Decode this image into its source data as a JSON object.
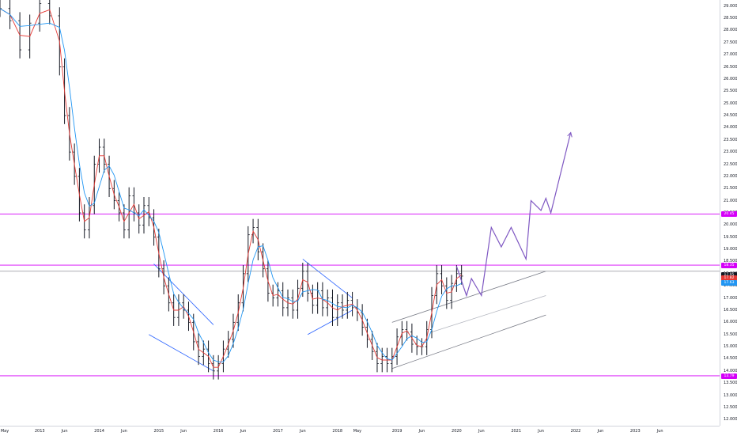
{
  "chart_data": {
    "type": "candlestick",
    "title": "",
    "ylim": [
      11.75,
      29.25
    ],
    "x_range": [
      "2012-05",
      "2024-06"
    ],
    "y_ticks": [
      "29.000",
      "28.500",
      "28.000",
      "27.500",
      "27.000",
      "26.500",
      "26.000",
      "25.500",
      "25.000",
      "24.500",
      "24.000",
      "23.500",
      "23.000",
      "22.500",
      "22.000",
      "21.500",
      "21.000",
      "20.500",
      "20.000",
      "19.500",
      "19.000",
      "18.500",
      "18.000",
      "17.500",
      "17.000",
      "16.500",
      "16.000",
      "15.500",
      "15.000",
      "14.500",
      "14.000",
      "13.500",
      "13.000",
      "12.500",
      "12.000"
    ],
    "x_ticks": [
      {
        "label": "May",
        "x": "2012-05"
      },
      {
        "label": "2013",
        "x": "2013-01"
      },
      {
        "label": "Jun",
        "x": "2013-06"
      },
      {
        "label": "2014",
        "x": "2014-01"
      },
      {
        "label": "Jun",
        "x": "2014-06"
      },
      {
        "label": "2015",
        "x": "2015-01"
      },
      {
        "label": "Jun",
        "x": "2015-06"
      },
      {
        "label": "2016",
        "x": "2016-01"
      },
      {
        "label": "Jun",
        "x": "2016-06"
      },
      {
        "label": "2017",
        "x": "2017-01"
      },
      {
        "label": "Jun",
        "x": "2017-06"
      },
      {
        "label": "2018",
        "x": "2018-01"
      },
      {
        "label": "May",
        "x": "2018-05"
      },
      {
        "label": "2019",
        "x": "2019-01"
      },
      {
        "label": "Jun",
        "x": "2019-06"
      },
      {
        "label": "2020",
        "x": "2020-01"
      },
      {
        "label": "Jun",
        "x": "2020-06"
      },
      {
        "label": "2021",
        "x": "2021-01"
      },
      {
        "label": "Jun",
        "x": "2021-06"
      },
      {
        "label": "2022",
        "x": "2022-01"
      },
      {
        "label": "Jun",
        "x": "2022-06"
      },
      {
        "label": "2023",
        "x": "2023-01"
      },
      {
        "label": "Jun",
        "x": "2023-06"
      }
    ],
    "price_series_close": [
      [
        "2012-05",
        28.9
      ],
      [
        "2012-07",
        28.4
      ],
      [
        "2012-09",
        27.2
      ],
      [
        "2012-11",
        28.3
      ],
      [
        "2013-01",
        29.1
      ],
      [
        "2013-03",
        28.6
      ],
      [
        "2013-05",
        26.5
      ],
      [
        "2013-06",
        24.5
      ],
      [
        "2013-07",
        23.0
      ],
      [
        "2013-08",
        22.0
      ],
      [
        "2013-09",
        20.5
      ],
      [
        "2013-10",
        19.8
      ],
      [
        "2013-11",
        20.8
      ],
      [
        "2013-12",
        22.5
      ],
      [
        "2014-01",
        23.2
      ],
      [
        "2014-02",
        22.5
      ],
      [
        "2014-03",
        21.5
      ],
      [
        "2014-04",
        21.0
      ],
      [
        "2014-05",
        20.5
      ],
      [
        "2014-06",
        19.8
      ],
      [
        "2014-07",
        21.2
      ],
      [
        "2014-08",
        20.5
      ],
      [
        "2014-09",
        20.0
      ],
      [
        "2014-10",
        20.8
      ],
      [
        "2014-11",
        20.3
      ],
      [
        "2014-12",
        19.5
      ],
      [
        "2015-01",
        18.2
      ],
      [
        "2015-02",
        17.5
      ],
      [
        "2015-03",
        16.8
      ],
      [
        "2015-04",
        16.2
      ],
      [
        "2015-05",
        16.8
      ],
      [
        "2015-06",
        16.5
      ],
      [
        "2015-07",
        16.0
      ],
      [
        "2015-08",
        15.2
      ],
      [
        "2015-09",
        14.6
      ],
      [
        "2015-10",
        14.9
      ],
      [
        "2015-11",
        14.3
      ],
      [
        "2015-12",
        14.0
      ],
      [
        "2016-01",
        14.3
      ],
      [
        "2016-02",
        14.9
      ],
      [
        "2016-03",
        15.3
      ],
      [
        "2016-04",
        16.0
      ],
      [
        "2016-05",
        16.8
      ],
      [
        "2016-06",
        18.0
      ],
      [
        "2016-07",
        19.6
      ],
      [
        "2016-08",
        19.9
      ],
      [
        "2016-09",
        18.9
      ],
      [
        "2016-10",
        18.2
      ],
      [
        "2016-11",
        17.2
      ],
      [
        "2016-12",
        17.0
      ],
      [
        "2017-01",
        17.3
      ],
      [
        "2017-02",
        16.6
      ],
      [
        "2017-03",
        17.0
      ],
      [
        "2017-04",
        16.5
      ],
      [
        "2017-05",
        17.4
      ],
      [
        "2017-06",
        18.1
      ],
      [
        "2017-07",
        17.2
      ],
      [
        "2017-08",
        16.7
      ],
      [
        "2017-09",
        17.3
      ],
      [
        "2017-10",
        16.6
      ],
      [
        "2017-11",
        17.0
      ],
      [
        "2017-12",
        16.2
      ],
      [
        "2018-01",
        16.8
      ],
      [
        "2018-02",
        16.5
      ],
      [
        "2018-03",
        16.9
      ],
      [
        "2018-04",
        16.6
      ],
      [
        "2018-05",
        16.4
      ],
      [
        "2018-06",
        15.8
      ],
      [
        "2018-07",
        15.3
      ],
      [
        "2018-08",
        14.8
      ],
      [
        "2018-09",
        14.3
      ],
      [
        "2018-10",
        14.6
      ],
      [
        "2018-11",
        14.3
      ],
      [
        "2018-12",
        14.6
      ],
      [
        "2019-01",
        15.4
      ],
      [
        "2019-02",
        15.7
      ],
      [
        "2019-03",
        15.6
      ],
      [
        "2019-04",
        15.1
      ],
      [
        "2019-05",
        15.0
      ],
      [
        "2019-06",
        15.0
      ],
      [
        "2019-07",
        15.7
      ],
      [
        "2019-08",
        17.1
      ],
      [
        "2019-09",
        18.0
      ],
      [
        "2019-10",
        17.5
      ],
      [
        "2019-11",
        16.9
      ],
      [
        "2019-12",
        17.6
      ],
      [
        "2020-01",
        18.0
      ],
      [
        "2020-02",
        17.9
      ]
    ],
    "sma_short_color": "#e53935",
    "sma_long_color": "#2196f3",
    "horizontal_levels": [
      {
        "price": 20.45,
        "color": "#d500f9"
      },
      {
        "price": 18.35,
        "color": "#d500f9"
      },
      {
        "price": 18.1,
        "color": "#787b86"
      },
      {
        "price": 13.8,
        "color": "#d500f9"
      }
    ],
    "trendlines": [
      {
        "from": [
          "2014-12",
          18.4
        ],
        "to": [
          "2015-12",
          15.9
        ],
        "color": "#2962ff"
      },
      {
        "from": [
          "2014-11",
          15.5
        ],
        "to": [
          "2015-12",
          14.0
        ],
        "color": "#2962ff"
      },
      {
        "from": [
          "2017-06",
          18.6
        ],
        "to": [
          "2018-04",
          17.0
        ],
        "color": "#2962ff"
      },
      {
        "from": [
          "2017-07",
          15.5
        ],
        "to": [
          "2018-04",
          16.5
        ],
        "color": "#2962ff"
      },
      {
        "from": [
          "2018-12",
          14.1
        ],
        "to": [
          "2021-07",
          16.3
        ],
        "color": "#787b86"
      },
      {
        "from": [
          "2018-12",
          16.0
        ],
        "to": [
          "2021-07",
          18.1
        ],
        "color": "#787b86"
      },
      {
        "from": [
          "2019-08",
          15.6
        ],
        "to": [
          "2021-07",
          17.1
        ],
        "color": "#b2b5be"
      }
    ],
    "projection_path": [
      [
        "2020-01",
        18.3
      ],
      [
        "2020-03",
        17.1
      ],
      [
        "2020-04",
        17.8
      ],
      [
        "2020-06",
        17.1
      ],
      [
        "2020-08",
        19.9
      ],
      [
        "2020-10",
        19.1
      ],
      [
        "2020-12",
        19.9
      ],
      [
        "2021-03",
        18.6
      ],
      [
        "2021-04",
        21.0
      ],
      [
        "2021-06",
        20.6
      ],
      [
        "2021-07",
        21.1
      ],
      [
        "2021-08",
        20.5
      ],
      [
        "2021-12",
        23.8
      ]
    ],
    "projection_color": "#7e57c2",
    "price_badges": [
      {
        "label": "20.45",
        "price": 20.45,
        "color": "#d500f9"
      },
      {
        "label": "18.35",
        "price": 18.35,
        "color": "#d500f9"
      },
      {
        "label": "17.95",
        "price": 17.95,
        "color": "#131722"
      },
      {
        "label": "17.82",
        "price": 17.82,
        "color": "#e53935"
      },
      {
        "label": "17.63",
        "price": 17.63,
        "color": "#2196f3"
      },
      {
        "label": "13.79",
        "price": 13.79,
        "color": "#d500f9"
      }
    ]
  }
}
